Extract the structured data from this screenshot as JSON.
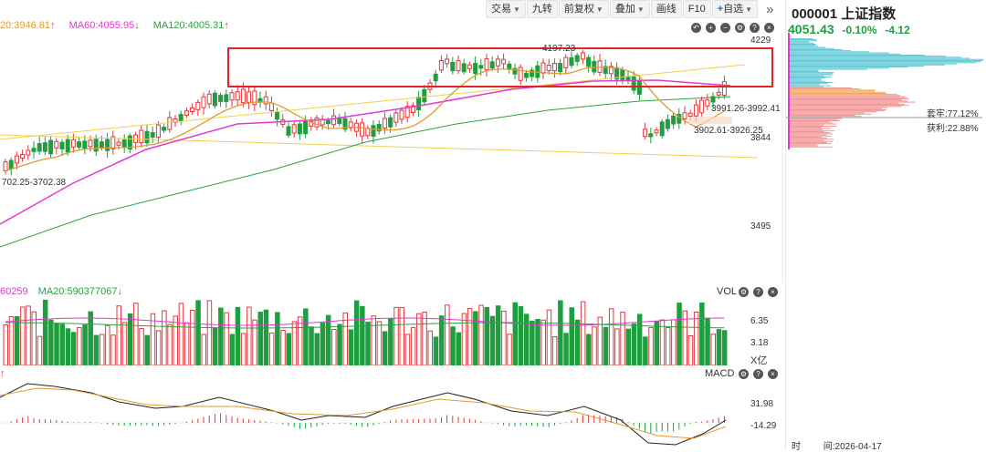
{
  "ma_legend": {
    "ma20": "20:3946.81",
    "ma60": "MA60:4055.95",
    "ma120": "MA120:4005.31",
    "ma20_arrow": "↑",
    "ma60_arrow": "↓",
    "ma120_arrow": "↑"
  },
  "toolbar": {
    "items": [
      "交易",
      "九转",
      "前复权",
      "叠加",
      "画线",
      "F10",
      "自选"
    ],
    "zixuan_plus": "+",
    "expand": "»"
  },
  "price_axis": {
    "top": "4229",
    "mid": "3844",
    "low": "3495"
  },
  "annotations": {
    "high": "4197.23",
    "left_range": "702.25-3702.38",
    "range1": "3991.26-3992.41",
    "range2": "3902.61-3926.25"
  },
  "volume_panel": {
    "legend_ma5": "60259",
    "legend_ma20": "MA20:590377067",
    "legend_ma20_arrow": "↓",
    "label": "VOL",
    "axis_top": "6.35",
    "axis_mid": "3.18",
    "axis_unit": "X亿"
  },
  "macd_panel": {
    "label": "MACD",
    "axis_top": "31.98",
    "axis_low": "-14.29",
    "left_marker": "↑"
  },
  "side_panel": {
    "code": "000001",
    "name": "上证指数",
    "price": "4051.43",
    "change_pct": "-0.10%",
    "change": "-4.12",
    "trapped": "套牢:77.12%",
    "profit": "获利:22.88%",
    "time_label": "时",
    "date": "间:2026-04-17"
  },
  "colors": {
    "up": "#e0383e",
    "down": "#1e9e3e",
    "ma20": "#e39a2b",
    "ma60": "#e637d1",
    "ma120": "#2aa33c",
    "highlight_box": "#e0242a",
    "chip_blue": "#4fc3d3",
    "chip_red": "#f08a8a"
  },
  "icons": [
    "back-icon",
    "zoom-in-icon",
    "zoom-out-icon",
    "settings-icon",
    "help-icon",
    "close-icon"
  ]
}
